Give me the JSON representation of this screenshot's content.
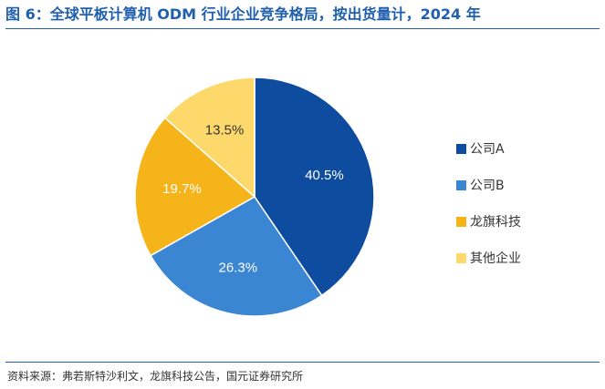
{
  "title": "图 6：全球平板计算机 ODM 行业企业竞争格局，按出货量计，2024 年",
  "source": "资料来源：弗若斯特沙利文，龙旗科技公告，国元证券研究所",
  "chart_data": {
    "type": "pie",
    "title": "图 6：全球平板计算机 ODM 行业企业竞争格局，按出货量计，2024 年",
    "legend_position": "right",
    "slices": [
      {
        "label": "公司A",
        "value": 40.5,
        "value_label": "40.5%",
        "color": "#0e4c9f"
      },
      {
        "label": "公司B",
        "value": 26.3,
        "value_label": "26.3%",
        "color": "#3a86d2"
      },
      {
        "label": "龙旗科技",
        "value": 19.7,
        "value_label": "19.7%",
        "color": "#f4b41a"
      },
      {
        "label": "其他企业",
        "value": 13.5,
        "value_label": "13.5%",
        "color": "#fdd96b"
      }
    ]
  }
}
